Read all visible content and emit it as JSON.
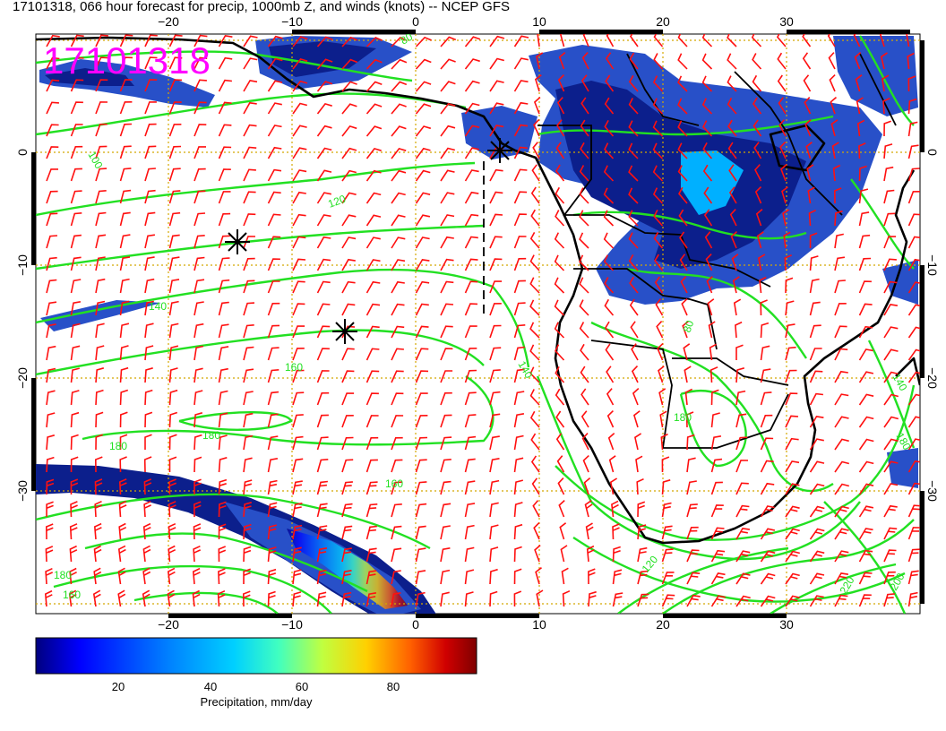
{
  "title": "17101318, 066 hour forecast for precip, 1000mb Z, and winds (knots) -- NCEP GFS",
  "stamp": "17101318",
  "stamp_color": "#ff00ff",
  "axes": {
    "lon_ticks": [
      "−20",
      "−10",
      "0",
      "10",
      "20",
      "30"
    ],
    "lat_ticks": [
      "0",
      "−10",
      "−20",
      "−30"
    ]
  },
  "contour_labels": [
    "80",
    "100",
    "120",
    "140",
    "160",
    "180",
    "200",
    "220"
  ],
  "colorbar": {
    "label": "Precipitation, mm/day",
    "ticks": [
      "20",
      "40",
      "60",
      "80"
    ],
    "colors": [
      "#00007f",
      "#0000ff",
      "#0080ff",
      "#00d0ff",
      "#40ffc0",
      "#c0ff40",
      "#ffd000",
      "#ff6000",
      "#d00000",
      "#7f0000"
    ]
  },
  "colors": {
    "contour": "#22e022",
    "barb": "#ff1010",
    "coast": "#000000",
    "grid": "#d4a800",
    "precip_light": "#2850c8",
    "precip_dark": "#0c1f8c"
  }
}
